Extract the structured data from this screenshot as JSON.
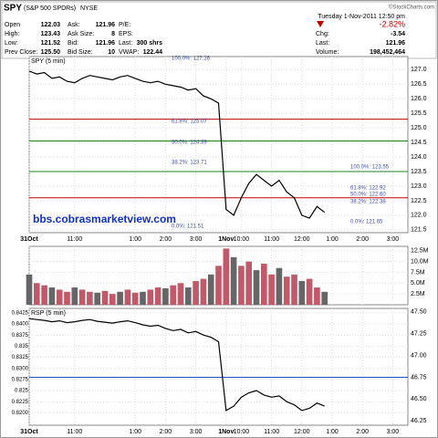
{
  "header": {
    "symbol": "SPY",
    "name": "(S&P 500 SPDRs)",
    "exchange": "NYSE",
    "source": "©StockCharts.com",
    "date": "Tuesday  1-Nov-2011  12:50 pm",
    "quote": [
      [
        {
          "label": "Open",
          "value": "122.03"
        },
        {
          "label": "Ask:",
          "value": "121.96"
        },
        {
          "label": "P/E:"
        }
      ],
      [
        {
          "label": "High:",
          "value": "123.43"
        },
        {
          "label": "Ask Size:",
          "value": "8"
        },
        {
          "label": "EPS:"
        }
      ],
      [
        {
          "label": "Low:",
          "value": "121.52"
        },
        {
          "label": "Bid:",
          "value": "121.96"
        },
        {
          "label": "Last:",
          "value": "300 shrs"
        }
      ],
      [
        {
          "label": "Prev Close:",
          "value": "125.50"
        },
        {
          "label": "Bid Size:",
          "value": "10"
        },
        {
          "label": "VWAP:",
          "value": "122.44"
        }
      ]
    ],
    "change_pct": "-2.82%",
    "stats": [
      {
        "label": "Chg:",
        "value": "-3.54"
      },
      {
        "label": "Last:",
        "value": "121.96"
      },
      {
        "label": "Volume:",
        "value": "198,452,464"
      }
    ]
  },
  "chart_data": [
    {
      "type": "line",
      "title": "SPY (5 min)",
      "watermark": "bbs.cobrasmarketview.com",
      "color": "#000000",
      "x": [
        0,
        3,
        6,
        9,
        12,
        15,
        18,
        21,
        24,
        27,
        30,
        33,
        36,
        39,
        42,
        45,
        48,
        51,
        54,
        57,
        60,
        63,
        66,
        69,
        72,
        75,
        78,
        81,
        84,
        87,
        90,
        93,
        96,
        99,
        102,
        105,
        108,
        111,
        114,
        117
      ],
      "values": [
        126.95,
        126.85,
        126.9,
        126.7,
        126.75,
        126.6,
        126.55,
        126.7,
        126.8,
        126.75,
        126.7,
        126.65,
        126.75,
        126.8,
        126.7,
        126.6,
        126.55,
        126.6,
        126.5,
        126.45,
        126.4,
        126.3,
        126.35,
        126.1,
        126.0,
        125.85,
        122.2,
        122.0,
        122.6,
        123.1,
        123.4,
        123.2,
        123.0,
        123.2,
        122.8,
        122.6,
        122.0,
        121.9,
        122.3,
        122.1
      ],
      "xlim": [
        0,
        150
      ],
      "xticks": [
        {
          "value": 0,
          "label": "31Oct"
        },
        {
          "value": 18,
          "label": "11:00"
        },
        {
          "value": 42,
          "label": "1:00"
        },
        {
          "value": 54,
          "label": "2:00"
        },
        {
          "value": 66,
          "label": "3:00"
        },
        {
          "value": 78,
          "label": "1Nov"
        },
        {
          "value": 84,
          "label": "10:00"
        },
        {
          "value": 96,
          "label": "11:00"
        },
        {
          "value": 108,
          "label": "12:00"
        },
        {
          "value": 120,
          "label": "1:00"
        },
        {
          "value": 132,
          "label": "2:00"
        },
        {
          "value": 144,
          "label": "3:00"
        }
      ],
      "ylim": [
        121.4,
        127.45
      ],
      "yticks": [
        121.5,
        {
          "value": 122,
          "label": "122.0"
        },
        122.5,
        {
          "value": 123,
          "label": "123.0"
        },
        123.5,
        {
          "value": 124,
          "label": "124.0"
        },
        124.5,
        {
          "value": 125,
          "label": "125.0"
        },
        125.5,
        {
          "value": 126,
          "label": "126.0"
        },
        126.5,
        {
          "value": 127,
          "label": "127.0"
        }
      ],
      "hlines": [
        {
          "value": 125.3,
          "color": "#c00000"
        },
        {
          "value": 123.5,
          "color": "#208020"
        },
        {
          "value": 122.6,
          "color": "#c00000"
        },
        {
          "value": 124.55,
          "color": "#208020"
        }
      ],
      "annotations": [
        "100.0%: 127.26",
        "61.8%: 125.07",
        "50.0%: 124.39",
        "38.2%: 123.71",
        "0.0%: 121.51",
        "100.0%: 123.55",
        "61.8%: 122.92",
        "50.0%: 122.60",
        "38.2%: 122.38",
        "0.0%: 121.65"
      ]
    },
    {
      "type": "bar",
      "color": "#c05a6a",
      "x": [
        0,
        3,
        6,
        9,
        12,
        15,
        18,
        21,
        24,
        27,
        30,
        33,
        36,
        39,
        42,
        45,
        48,
        51,
        54,
        57,
        60,
        63,
        66,
        69,
        72,
        75,
        78,
        81,
        84,
        87,
        90,
        93,
        96,
        99,
        102,
        105,
        108,
        111,
        114,
        117
      ],
      "values": [
        7000000,
        5000000,
        4500000,
        4000000,
        3500000,
        3000000,
        4000000,
        3500000,
        3000000,
        2800000,
        3200000,
        2500000,
        3000000,
        3500000,
        2800000,
        3000000,
        3500000,
        4000000,
        3800000,
        4500000,
        5000000,
        4000000,
        5500000,
        6000000,
        7000000,
        9000000,
        13000000,
        11000000,
        9000000,
        10000000,
        8000000,
        9500000,
        7000000,
        8500000,
        6500000,
        7000000,
        5500000,
        6000000,
        4000000,
        3000000
      ],
      "xlim": [
        0,
        150
      ],
      "ylim": [
        0,
        13500000
      ],
      "yticks": [
        {
          "value": 2500000,
          "label": "2.5M"
        },
        {
          "value": 5000000,
          "label": "5.0M"
        },
        {
          "value": 7500000,
          "label": "7.5M"
        },
        {
          "value": 10000000,
          "label": "10.0M"
        },
        {
          "value": 12500000,
          "label": "12.5M"
        }
      ]
    },
    {
      "type": "line",
      "title": "RSP (5 min)",
      "color": "#000000",
      "x": [
        0,
        3,
        6,
        9,
        12,
        15,
        18,
        21,
        24,
        27,
        30,
        33,
        36,
        39,
        42,
        45,
        48,
        51,
        54,
        57,
        60,
        63,
        66,
        69,
        72,
        75,
        78,
        81,
        84,
        87,
        90,
        93,
        96,
        99,
        102,
        105,
        108,
        111,
        114,
        117
      ],
      "values": [
        0.8412,
        0.841,
        0.8408,
        0.8405,
        0.8407,
        0.8403,
        0.8405,
        0.8408,
        0.841,
        0.8406,
        0.8404,
        0.8402,
        0.8405,
        0.8407,
        0.8403,
        0.8398,
        0.8395,
        0.8397,
        0.839,
        0.8385,
        0.8388,
        0.838,
        0.8383,
        0.8375,
        0.837,
        0.836,
        0.8205,
        0.8215,
        0.8235,
        0.8245,
        0.825,
        0.824,
        0.8235,
        0.8238,
        0.8225,
        0.8218,
        0.8205,
        0.821,
        0.8222,
        0.8215
      ],
      "xlim": [
        0,
        150
      ],
      "ylim": [
        0.8172,
        0.8435
      ],
      "yticks": [
        {
          "value": 0.82,
          "label": "0.8200"
        },
        0.8225,
        0.825,
        0.8275,
        {
          "value": 0.83,
          "label": "0.8300"
        },
        0.8325,
        0.835,
        0.8375,
        {
          "value": 0.84,
          "label": "0.8400"
        },
        0.8425
      ],
      "y2lim": [
        46.2,
        47.54
      ],
      "y2ticks": [
        46.25,
        {
          "value": 46.5,
          "label": "46.50"
        },
        46.75,
        {
          "value": 47,
          "label": "47.00"
        },
        47.25,
        {
          "value": 47.5,
          "label": "47.50"
        }
      ],
      "hline2": 46.75,
      "xticks": [
        {
          "value": 0,
          "label": "31Oct"
        },
        {
          "value": 18,
          "label": "11:00"
        },
        {
          "value": 42,
          "label": "1:00"
        },
        {
          "value": 54,
          "label": "2:00"
        },
        {
          "value": 66,
          "label": "3:00"
        },
        {
          "value": 78,
          "label": "1Nov"
        },
        {
          "value": 84,
          "label": "10:00"
        },
        {
          "value": 96,
          "label": "11:00"
        },
        {
          "value": 108,
          "label": "12:00"
        },
        {
          "value": 120,
          "label": "1:00"
        },
        {
          "value": 132,
          "label": "2:00"
        },
        {
          "value": 144,
          "label": "3:00"
        }
      ]
    }
  ]
}
